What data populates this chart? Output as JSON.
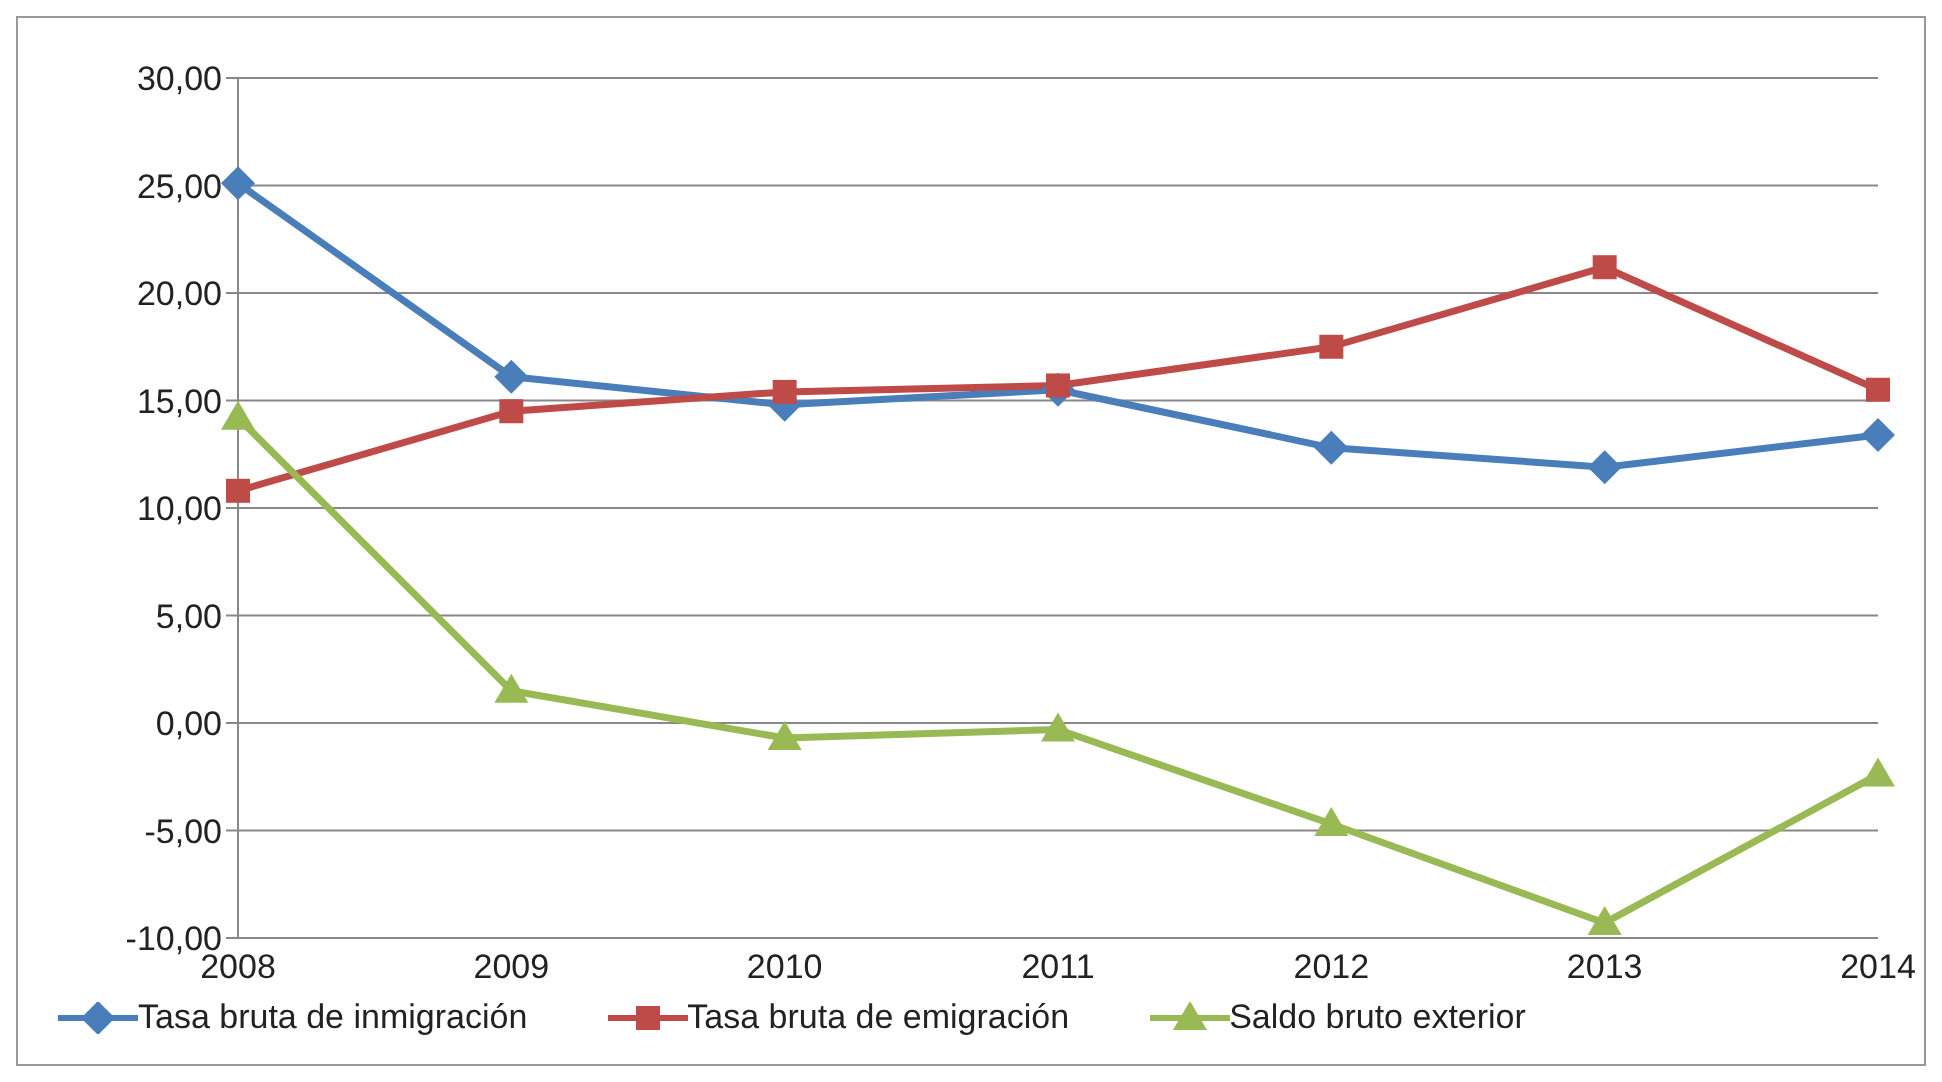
{
  "chart_data": {
    "type": "line",
    "categories": [
      "2008",
      "2009",
      "2010",
      "2011",
      "2012",
      "2013",
      "2014"
    ],
    "series": [
      {
        "name": "Tasa bruta de inmigración",
        "color": "#4a7ebb",
        "marker": "diamond",
        "values": [
          25.1,
          16.1,
          14.8,
          15.5,
          12.8,
          11.9,
          13.4
        ]
      },
      {
        "name": "Tasa bruta de emigración",
        "color": "#be4b48",
        "marker": "square",
        "values": [
          10.8,
          14.5,
          15.4,
          15.7,
          17.5,
          21.2,
          15.5
        ]
      },
      {
        "name": "Saldo bruto exterior",
        "color": "#98b954",
        "marker": "triangle",
        "values": [
          14.2,
          1.5,
          -0.7,
          -0.3,
          -4.7,
          -9.3,
          -2.4
        ]
      }
    ],
    "ylim": [
      -10,
      30
    ],
    "yticks": [
      {
        "value": -10,
        "label": "-10,00"
      },
      {
        "value": -5,
        "label": "-5,00"
      },
      {
        "value": 0,
        "label": "0,00"
      },
      {
        "value": 5,
        "label": "5,00"
      },
      {
        "value": 10,
        "label": "10,00"
      },
      {
        "value": 15,
        "label": "15,00"
      },
      {
        "value": 20,
        "label": "20,00"
      },
      {
        "value": 25,
        "label": "25,00"
      },
      {
        "value": 30,
        "label": "30,00"
      }
    ],
    "grid": "y",
    "legend": "bottom",
    "line_style": "solid"
  }
}
